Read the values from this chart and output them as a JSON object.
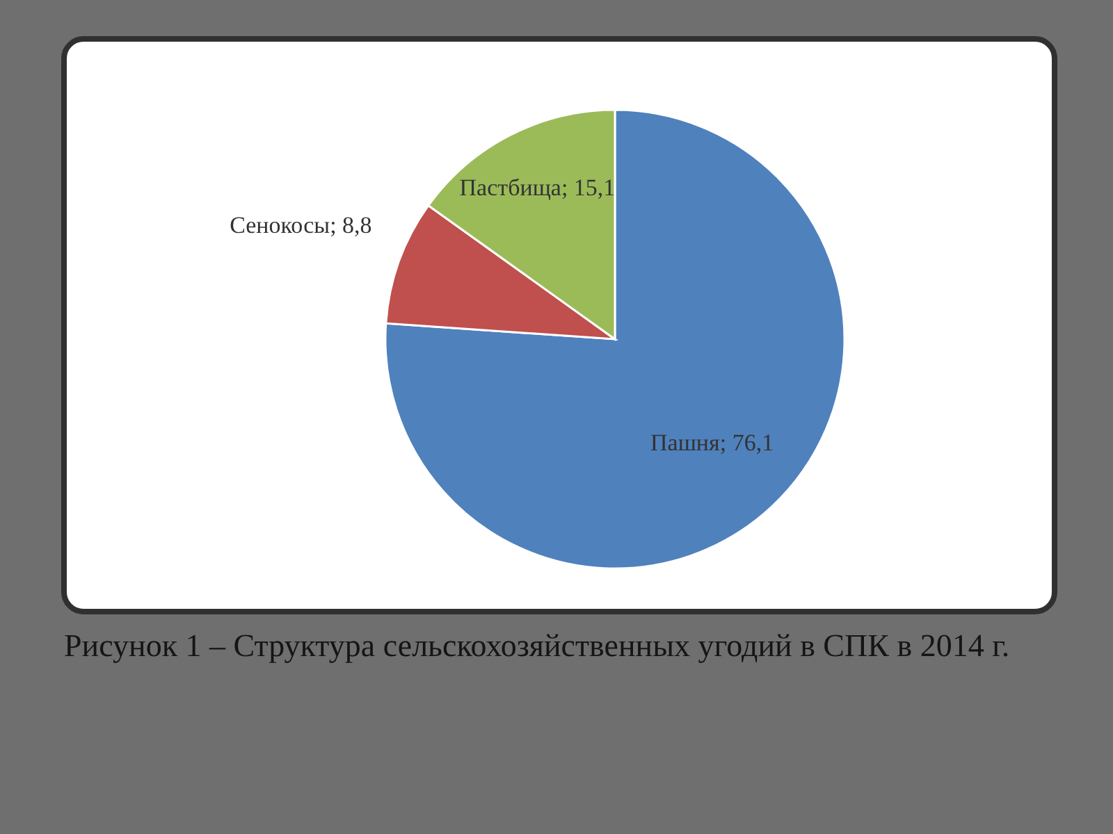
{
  "chart_data": {
    "type": "pie",
    "title": "Рисунок 1 – Структура сельскохозяйственных угодий в СПК в 2014 г.",
    "categories": [
      "Пашня",
      "Сенокосы",
      "Пастбища"
    ],
    "values": [
      76.1,
      8.8,
      15.1
    ],
    "colors": [
      "#4f81bd",
      "#c0504d",
      "#9bbb59"
    ],
    "value_labels": [
      "76,1",
      "8,8",
      "15,1"
    ]
  }
}
